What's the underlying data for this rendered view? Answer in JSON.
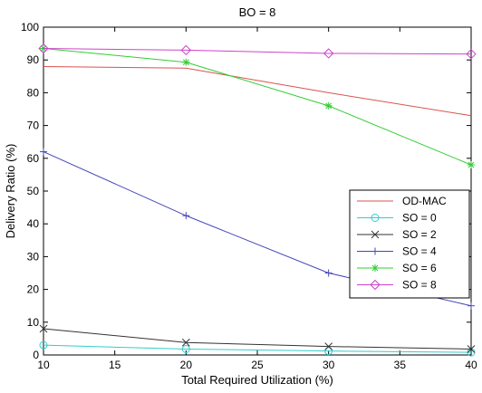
{
  "chart_data": {
    "type": "line",
    "title": "BO = 8",
    "xlabel": "Total Required Utilization (%)",
    "ylabel": "Delivery Ratio (%)",
    "xlim": [
      10,
      40
    ],
    "ylim": [
      0,
      100
    ],
    "xticks": [
      10,
      15,
      20,
      25,
      30,
      35,
      40
    ],
    "yticks": [
      0,
      10,
      20,
      30,
      40,
      50,
      60,
      70,
      80,
      90,
      100
    ],
    "grid": false,
    "legend_position": "right",
    "x": [
      10,
      20,
      30,
      40
    ],
    "series": [
      {
        "name": "OD-MAC",
        "color": "#d9534f",
        "marker": "none",
        "values": [
          88,
          87.5,
          80,
          73
        ]
      },
      {
        "name": "SO = 0",
        "color": "#33cccc",
        "marker": "circle",
        "values": [
          3,
          1.8,
          1.2,
          0.8
        ]
      },
      {
        "name": "SO = 2",
        "color": "#333333",
        "marker": "x",
        "values": [
          8,
          3.8,
          2.6,
          1.8
        ]
      },
      {
        "name": "SO = 4",
        "color": "#4444bb",
        "marker": "plus",
        "values": [
          62,
          42.5,
          25,
          15
        ]
      },
      {
        "name": "SO = 6",
        "color": "#33cc33",
        "marker": "asterisk",
        "values": [
          93.5,
          89.3,
          76,
          58
        ]
      },
      {
        "name": "SO = 8",
        "color": "#cc44cc",
        "marker": "diamond",
        "values": [
          93.5,
          93,
          92,
          91.8
        ]
      }
    ]
  }
}
